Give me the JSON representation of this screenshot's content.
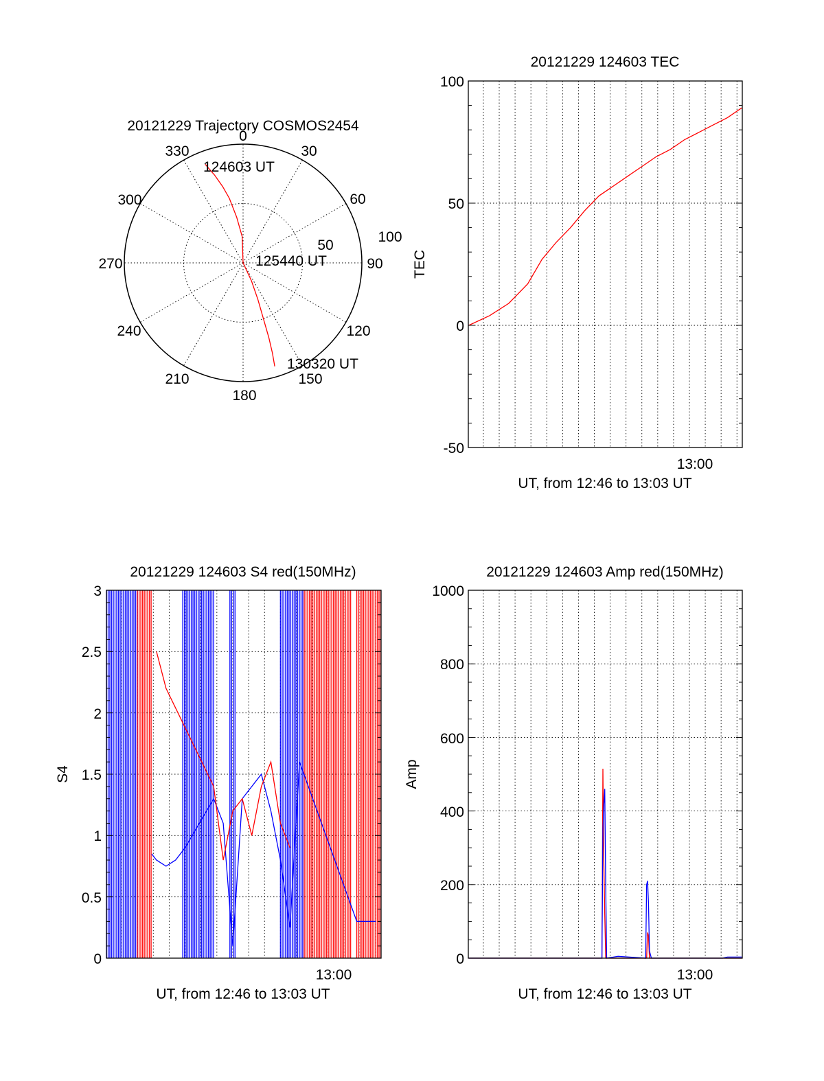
{
  "colors": {
    "red": "#ff0000",
    "blue": "#0000ff",
    "frame": "#000000",
    "grid": "#000000"
  },
  "chart_data": [
    {
      "id": "polar",
      "type": "line",
      "subtype": "polar-trajectory",
      "title": "20121229 Trajectory COSMOS2454",
      "azimuth_labels": [
        "0",
        "30",
        "60",
        "90",
        "120",
        "150",
        "180",
        "210",
        "240",
        "270",
        "300",
        "330"
      ],
      "radial_labels": [
        "50",
        "100"
      ],
      "annotations": [
        "124603 UT",
        "125440 UT",
        "130320 UT"
      ],
      "series": [
        {
          "color": "#ff0000",
          "points_az_el": [
            [
              339,
              10
            ],
            [
              342,
              20
            ],
            [
              345,
              30
            ],
            [
              348,
              40
            ],
            [
              352,
              55
            ],
            [
              358,
              70
            ],
            [
              0,
              90
            ],
            [
              155,
              75
            ],
            [
              158,
              60
            ],
            [
              160,
              45
            ],
            [
              161,
              30
            ],
            [
              162,
              18
            ],
            [
              163,
              8
            ]
          ]
        }
      ],
      "grid": true
    },
    {
      "id": "tec",
      "type": "line",
      "title": "20121229 124603 TEC",
      "xlabel": "UT, from 12:46 to 13:03 UT",
      "ylabel": "TEC",
      "xlim": [
        12.7675,
        13.0556
      ],
      "ylim": [
        -50,
        100
      ],
      "yticks": [
        "100",
        "50",
        "0",
        "-50"
      ],
      "xtick_label": "13:00",
      "grid": true,
      "series": [
        {
          "color": "#ff0000",
          "x": [
            12.768,
            12.79,
            12.81,
            12.83,
            12.845,
            12.86,
            12.875,
            12.89,
            12.905,
            12.92,
            12.935,
            12.95,
            12.965,
            12.98,
            12.995,
            13.01,
            13.025,
            13.04,
            13.055
          ],
          "y": [
            0,
            4,
            9,
            17,
            27,
            34,
            40,
            47,
            53,
            57,
            61,
            65,
            69,
            72,
            76,
            79,
            82,
            85,
            89
          ]
        }
      ]
    },
    {
      "id": "s4",
      "type": "line",
      "title": "20121229 124603 S4 red(150MHz)",
      "xlabel": "UT, from 12:46 to 13:03 UT",
      "ylabel": "S4",
      "xlim": [
        12.7675,
        13.0556
      ],
      "ylim": [
        0,
        3
      ],
      "yticks": [
        "3",
        "2.5",
        "2",
        "1.5",
        "1",
        "0.5",
        "0"
      ],
      "xtick_label": "13:00",
      "grid": true,
      "series": [
        {
          "color": "#0000ff",
          "x": [
            12.815,
            12.82,
            12.83,
            12.84,
            12.85,
            12.88,
            12.89,
            12.9,
            12.91,
            12.92,
            12.93,
            12.94,
            12.95,
            12.96,
            12.97,
            13.03,
            13.04,
            13.05
          ],
          "y": [
            0.85,
            0.8,
            0.75,
            0.8,
            0.9,
            1.3,
            1.1,
            0.1,
            1.3,
            1.4,
            1.5,
            1.2,
            0.8,
            0.25,
            1.6,
            0.3,
            0.3,
            0.3
          ]
        },
        {
          "color": "#ff0000",
          "x": [
            12.82,
            12.83,
            12.88,
            12.89,
            12.9,
            12.91,
            12.92,
            12.93,
            12.94,
            12.95,
            12.96
          ],
          "y": [
            2.5,
            2.2,
            1.4,
            0.8,
            1.2,
            1.3,
            1.0,
            1.4,
            1.6,
            1.1,
            0.9
          ]
        }
      ]
    },
    {
      "id": "amp",
      "type": "line",
      "title": "20121229 124603 Amp red(150MHz)",
      "xlabel": "UT, from 12:46 to 13:03 UT",
      "ylabel": "Amp",
      "xlim": [
        12.7675,
        13.0556
      ],
      "ylim": [
        0,
        1000
      ],
      "yticks": [
        "1000",
        "800",
        "600",
        "400",
        "200",
        "0"
      ],
      "xtick_label": "13:00",
      "grid": true,
      "series": [
        {
          "color": "#ff0000",
          "x": [
            12.768,
            12.908,
            12.909,
            12.91,
            12.911,
            12.912,
            12.955,
            12.956,
            12.957,
            12.958,
            13.055
          ],
          "y": [
            0,
            0,
            515,
            260,
            120,
            0,
            0,
            70,
            60,
            0,
            0
          ]
        },
        {
          "color": "#0000ff",
          "x": [
            12.768,
            12.908,
            12.909,
            12.91,
            12.911,
            12.912,
            12.913,
            12.925,
            12.954,
            12.955,
            12.956,
            12.957,
            12.958,
            12.96,
            13.035,
            13.04,
            13.055
          ],
          "y": [
            0,
            0,
            350,
            420,
            460,
            200,
            0,
            5,
            0,
            200,
            210,
            150,
            20,
            0,
            0,
            3,
            3
          ]
        }
      ]
    }
  ]
}
